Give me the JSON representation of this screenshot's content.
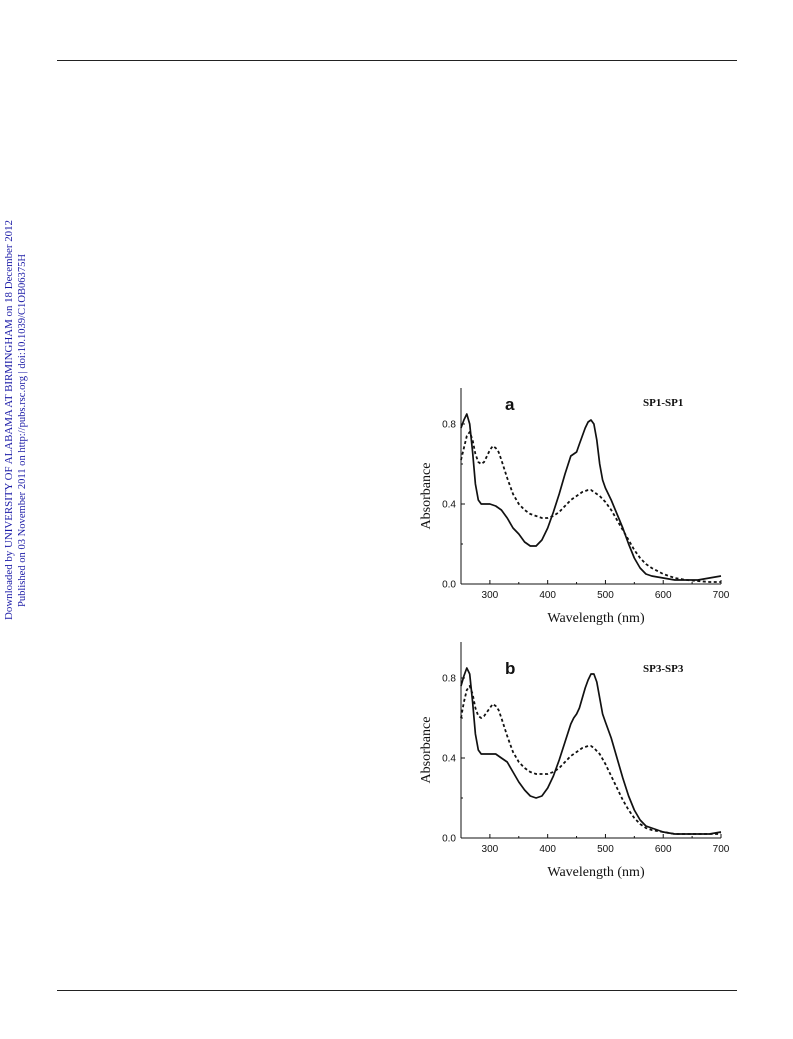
{
  "watermark": {
    "line1": "Downloaded by UNIVERSITY OF ALABAMA AT BIRMINGHAM on 18 December 2012",
    "line2": "Published on 03 November 2011 on http://pubs.rsc.org | doi:10.1039/C1OB06375H",
    "color": "#1a1aa6"
  },
  "chart_data": [
    {
      "type": "line",
      "panel_label": "a",
      "label": "SP1-SP1",
      "xlabel": "Wavelength (nm)",
      "ylabel": "Absorbance",
      "xlim": [
        250,
        700
      ],
      "ylim": [
        0.0,
        0.98
      ],
      "xticks": [
        "300",
        "400",
        "500",
        "600",
        "700"
      ],
      "yticks": [
        "0.0",
        "0.4",
        "0.8"
      ],
      "series": [
        {
          "style": "solid",
          "x": [
            250,
            255,
            260,
            265,
            270,
            275,
            280,
            285,
            290,
            300,
            310,
            320,
            330,
            340,
            350,
            360,
            370,
            380,
            390,
            400,
            410,
            420,
            430,
            440,
            445,
            450,
            455,
            460,
            465,
            470,
            475,
            480,
            485,
            490,
            495,
            500,
            510,
            520,
            530,
            540,
            550,
            560,
            570,
            580,
            600,
            620,
            640,
            660,
            680,
            700
          ],
          "y": [
            0.78,
            0.82,
            0.85,
            0.8,
            0.66,
            0.5,
            0.42,
            0.4,
            0.4,
            0.4,
            0.39,
            0.37,
            0.33,
            0.28,
            0.25,
            0.21,
            0.19,
            0.19,
            0.22,
            0.28,
            0.36,
            0.45,
            0.55,
            0.64,
            0.65,
            0.66,
            0.7,
            0.74,
            0.78,
            0.81,
            0.82,
            0.8,
            0.72,
            0.6,
            0.52,
            0.48,
            0.42,
            0.35,
            0.28,
            0.2,
            0.13,
            0.08,
            0.05,
            0.04,
            0.03,
            0.02,
            0.02,
            0.02,
            0.03,
            0.04
          ]
        },
        {
          "style": "dashed",
          "x": [
            250,
            255,
            260,
            265,
            270,
            275,
            280,
            285,
            290,
            295,
            300,
            305,
            310,
            315,
            320,
            330,
            340,
            350,
            360,
            370,
            380,
            390,
            400,
            410,
            420,
            430,
            440,
            450,
            460,
            470,
            475,
            480,
            490,
            500,
            510,
            520,
            530,
            540,
            550,
            560,
            570,
            580,
            600,
            620,
            640,
            660,
            680,
            700
          ],
          "y": [
            0.62,
            0.68,
            0.74,
            0.76,
            0.72,
            0.65,
            0.61,
            0.6,
            0.61,
            0.64,
            0.67,
            0.69,
            0.68,
            0.66,
            0.62,
            0.53,
            0.45,
            0.4,
            0.37,
            0.35,
            0.34,
            0.33,
            0.33,
            0.34,
            0.36,
            0.39,
            0.42,
            0.44,
            0.46,
            0.47,
            0.47,
            0.46,
            0.44,
            0.41,
            0.37,
            0.32,
            0.27,
            0.22,
            0.17,
            0.13,
            0.1,
            0.08,
            0.05,
            0.03,
            0.02,
            0.015,
            0.01,
            0.01
          ]
        }
      ]
    },
    {
      "type": "line",
      "panel_label": "b",
      "label": "SP3-SP3",
      "xlabel": "Wavelength (nm)",
      "ylabel": "Absorbance",
      "xlim": [
        250,
        700
      ],
      "ylim": [
        0.0,
        0.98
      ],
      "xticks": [
        "300",
        "400",
        "500",
        "600",
        "700"
      ],
      "yticks": [
        "0.0",
        "0.4",
        "0.8"
      ],
      "series": [
        {
          "style": "solid",
          "x": [
            250,
            255,
            260,
            265,
            270,
            275,
            280,
            285,
            290,
            300,
            310,
            320,
            330,
            340,
            350,
            360,
            370,
            380,
            390,
            400,
            410,
            420,
            430,
            440,
            445,
            450,
            455,
            460,
            465,
            470,
            475,
            480,
            485,
            490,
            495,
            500,
            510,
            520,
            530,
            540,
            550,
            560,
            570,
            580,
            600,
            620,
            640,
            660,
            680,
            700
          ],
          "y": [
            0.76,
            0.81,
            0.85,
            0.82,
            0.68,
            0.52,
            0.44,
            0.42,
            0.42,
            0.42,
            0.42,
            0.4,
            0.38,
            0.33,
            0.28,
            0.24,
            0.21,
            0.2,
            0.21,
            0.25,
            0.31,
            0.39,
            0.48,
            0.57,
            0.6,
            0.62,
            0.65,
            0.7,
            0.75,
            0.79,
            0.82,
            0.82,
            0.78,
            0.7,
            0.62,
            0.58,
            0.5,
            0.4,
            0.3,
            0.21,
            0.14,
            0.09,
            0.06,
            0.05,
            0.03,
            0.02,
            0.02,
            0.02,
            0.02,
            0.03
          ]
        },
        {
          "style": "dashed",
          "x": [
            250,
            255,
            260,
            265,
            270,
            275,
            280,
            285,
            290,
            295,
            300,
            305,
            310,
            315,
            320,
            330,
            340,
            350,
            360,
            370,
            380,
            390,
            400,
            410,
            420,
            430,
            440,
            450,
            460,
            470,
            475,
            480,
            490,
            500,
            510,
            520,
            530,
            540,
            550,
            560,
            570,
            580,
            600,
            620,
            640,
            660,
            680,
            700
          ],
          "y": [
            0.6,
            0.68,
            0.74,
            0.76,
            0.72,
            0.65,
            0.61,
            0.6,
            0.61,
            0.63,
            0.65,
            0.67,
            0.66,
            0.64,
            0.6,
            0.51,
            0.43,
            0.38,
            0.35,
            0.33,
            0.32,
            0.32,
            0.32,
            0.33,
            0.35,
            0.38,
            0.41,
            0.43,
            0.45,
            0.46,
            0.46,
            0.45,
            0.42,
            0.37,
            0.31,
            0.25,
            0.19,
            0.14,
            0.1,
            0.07,
            0.05,
            0.04,
            0.03,
            0.02,
            0.02,
            0.02,
            0.02,
            0.02
          ]
        }
      ]
    }
  ]
}
